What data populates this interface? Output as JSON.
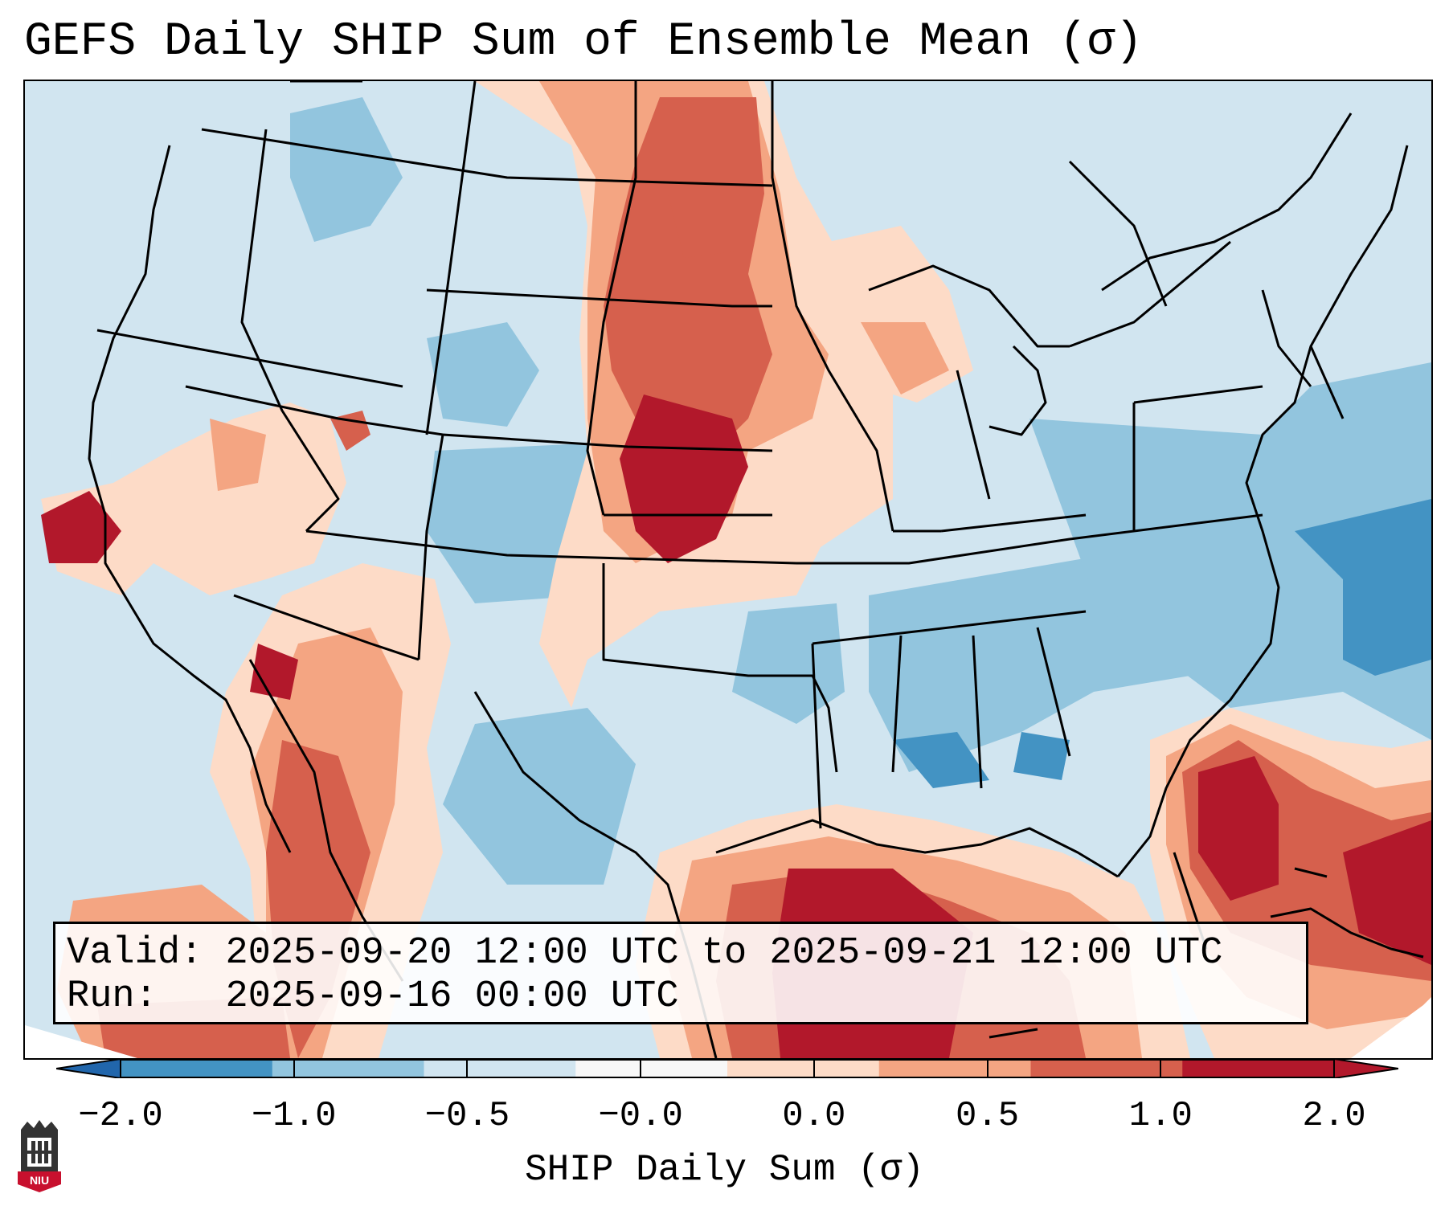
{
  "title": "GEFS Daily SHIP Sum of Ensemble Mean (σ)",
  "info": {
    "valid_label": "Valid:",
    "valid_value": "2025-09-20 12:00 UTC to 2025-09-21 12:00 UTC",
    "run_label": "Run:",
    "run_value": "2025-09-16 00:00 UTC"
  },
  "colorbar": {
    "label": "SHIP Daily Sum (σ)",
    "ticks": [
      "−2.0",
      "−1.0",
      "−0.5",
      "−0.0",
      "0.0",
      "0.5",
      "1.0",
      "2.0"
    ],
    "colors": [
      "#4393c3",
      "#92c5de",
      "#d1e5f0",
      "#f7f7f7",
      "#fddbc7",
      "#f4a582",
      "#d6604d",
      "#b2182b"
    ],
    "extend_low_color": "#2166ac",
    "extend_high_color": "#b2182b"
  },
  "logo": {
    "text": "NIU",
    "color": "#c8102e"
  }
}
